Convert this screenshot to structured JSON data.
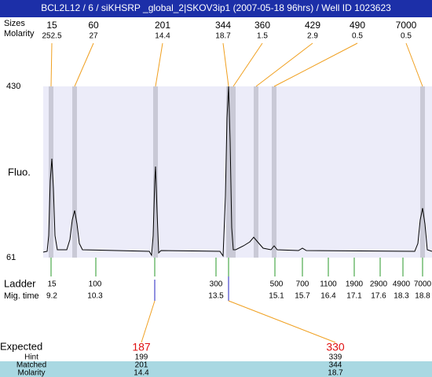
{
  "header": {
    "title": "BCL2L12 / 6 / siKHSRP _global_2|SKOV3ip1 (2007-05-18 96hrs) / Well ID 1023623"
  },
  "peaks": {
    "size_label": "Sizes",
    "molarity_label": "Molarity",
    "items": [
      {
        "size": 15,
        "molarity": 252.5
      },
      {
        "size": 60,
        "molarity": 27
      },
      {
        "size": 201,
        "molarity": 14.4
      },
      {
        "size": 344,
        "molarity": 18.7
      },
      {
        "size": 360,
        "molarity": 1.5
      },
      {
        "size": 429,
        "molarity": 2.9
      },
      {
        "size": 490,
        "molarity": 0.5
      },
      {
        "size": 7000,
        "molarity": 0.5
      }
    ]
  },
  "plot": {
    "y_axis_label": "Fluo.",
    "y_top": 430,
    "y_bottom": 61
  },
  "ladder": {
    "size_label": "Ladder",
    "time_label": "Mig. time",
    "items": [
      {
        "size": 15,
        "time": 9.2
      },
      {
        "size": 100,
        "time": 10.3
      },
      {
        "size": 300,
        "time": 13.5
      },
      {
        "size": 500,
        "time": 15.1
      },
      {
        "size": 700,
        "time": 15.7
      },
      {
        "size": 1100,
        "time": 16.4
      },
      {
        "size": 1900,
        "time": 17.1
      },
      {
        "size": 2900,
        "time": 17.6
      },
      {
        "size": 4900,
        "time": 18.3
      },
      {
        "size": 7000,
        "time": 18.8
      }
    ]
  },
  "expected": {
    "label": "Expected",
    "hint_label": "Hint",
    "matched_label": "Matched",
    "molarity_label": "Molarity",
    "items": [
      {
        "expected": 187,
        "hint": 199,
        "matched": 201,
        "molarity": 14.4
      },
      {
        "expected": 330,
        "hint": 339,
        "matched": 344,
        "molarity": 18.7
      }
    ]
  }
}
